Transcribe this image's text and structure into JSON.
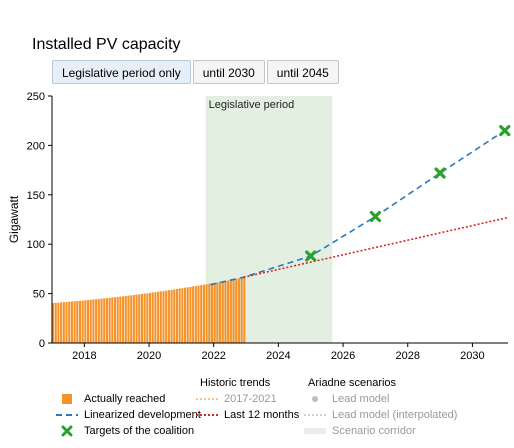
{
  "title": "Installed PV capacity",
  "buttons": [
    {
      "label": "Legislative period only",
      "active": true
    },
    {
      "label": "until 2030",
      "active": false
    },
    {
      "label": "until 2045",
      "active": false
    }
  ],
  "chart_data": {
    "type": "bar",
    "ylabel": "Gigawatt",
    "xlabel": "",
    "xlim": [
      2017.0,
      2031.1
    ],
    "ylim": [
      0,
      250
    ],
    "x_ticks": [
      2018,
      2020,
      2022,
      2024,
      2026,
      2028,
      2030
    ],
    "y_ticks": [
      0,
      50,
      100,
      150,
      200,
      250
    ],
    "grid": false,
    "legend_position": "bottom",
    "region": {
      "label": "Legislative period",
      "x_start": 2021.75,
      "x_end": 2025.67,
      "color": "#e3f0e1"
    },
    "series": [
      {
        "name": "Actually reached",
        "type": "bar",
        "color": "#f5922a",
        "x_start": 2017.0,
        "x_end": 2022.92,
        "y_start": 40.5,
        "y_end": 66.5,
        "step": 0.0833,
        "description_note": ""
      },
      {
        "name": "Linearized development",
        "type": "line",
        "style": "dashed",
        "color": "#2878bd",
        "x": [
          2021.9,
          2022.92,
          2025,
          2027,
          2029,
          2031
        ],
        "y": [
          59,
          66.5,
          88,
          128,
          172,
          215
        ]
      },
      {
        "name": "Targets of the coalition",
        "type": "scatter",
        "marker": "x",
        "color": "#2ca02c",
        "x": [
          2025,
          2027,
          2029,
          2031
        ],
        "y": [
          88,
          128,
          172,
          215
        ]
      },
      {
        "name": "Last 12 months",
        "type": "line",
        "style": "dotted",
        "color": "#d62728",
        "x": [
          2022.92,
          2031.1
        ],
        "y": [
          66.5,
          127
        ]
      }
    ]
  },
  "legend": {
    "col1": [
      {
        "label": "Actually reached",
        "icon": "orange-square"
      },
      {
        "label": "Linearized development",
        "icon": "blue-dashed-line"
      },
      {
        "label": "Targets of the coalition",
        "icon": "green-x"
      }
    ],
    "col2_title": "Historic trends",
    "col2": [
      {
        "label": "2017-2021",
        "icon": "orange-dotted-line",
        "muted": true
      },
      {
        "label": "Last 12 months",
        "icon": "red-dotted-line",
        "muted": false
      }
    ],
    "col3_title": "Ariadne scenarios",
    "col3": [
      {
        "label": "Lead model",
        "icon": "grey-dot",
        "muted": true
      },
      {
        "label": "Lead model (interpolated)",
        "icon": "grey-dotted-line",
        "muted": true
      },
      {
        "label": "Scenario corridor",
        "icon": "grey-band",
        "muted": true
      }
    ]
  }
}
